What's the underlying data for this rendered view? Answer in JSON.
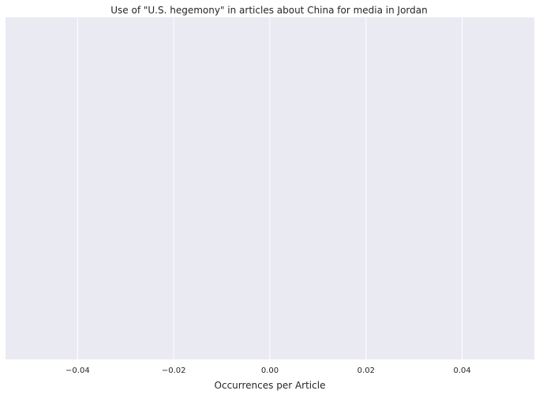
{
  "chart_data": {
    "type": "bar",
    "title": "Use of \"U.S. hegemony\" in articles about China for media in Jordan",
    "xlabel": "Occurrences per Article",
    "ylabel": "",
    "orientation": "horizontal",
    "categories": [],
    "values": [],
    "xlim": [
      -0.055,
      0.055
    ],
    "xticks": [
      -0.04,
      -0.02,
      0.0,
      0.02,
      0.04
    ],
    "xtick_labels": [
      "−0.04",
      "−0.02",
      "0.00",
      "0.02",
      "0.04"
    ],
    "grid": true,
    "legend": "none",
    "colors": {
      "plot_background": "#eaeaf2",
      "gridline": "#ffffff",
      "text": "#262626"
    }
  }
}
